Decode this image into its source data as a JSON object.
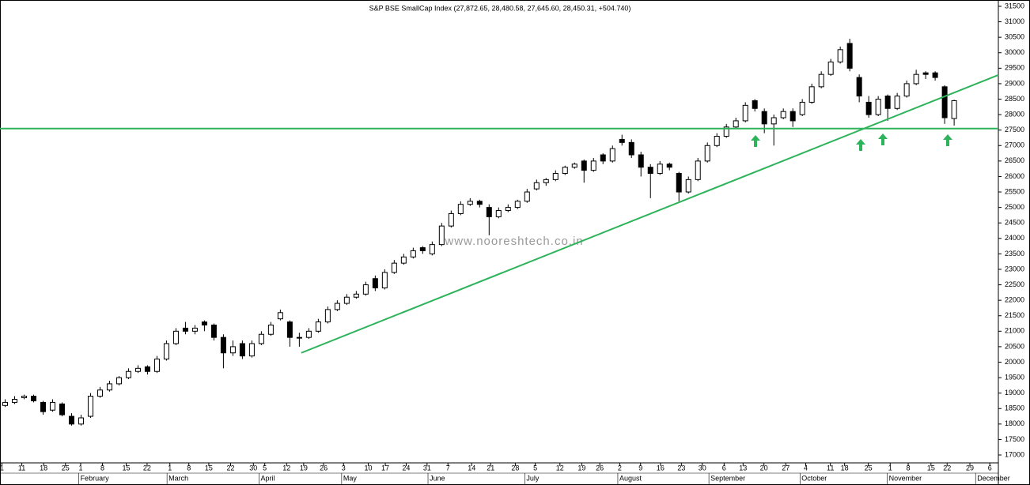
{
  "chart_data": {
    "type": "candlestick",
    "title": "S&P BSE SmallCap Index (27,872.65, 28,480.58, 27,645.60, 28,450.31, +504.740)",
    "watermark": "www.nooreshtech.co.in",
    "ohlc": [
      [
        18600,
        18800,
        18550,
        18700
      ],
      [
        18700,
        18900,
        18650,
        18800
      ],
      [
        18850,
        18950,
        18800,
        18900
      ],
      [
        18900,
        18950,
        18700,
        18750
      ],
      [
        18700,
        18750,
        18300,
        18400
      ],
      [
        18450,
        18800,
        18400,
        18700
      ],
      [
        18650,
        18700,
        18250,
        18300
      ],
      [
        18250,
        18350,
        17950,
        18000
      ],
      [
        18000,
        18300,
        17950,
        18200
      ],
      [
        18250,
        19000,
        18200,
        18900
      ],
      [
        18900,
        19200,
        18850,
        19100
      ],
      [
        19100,
        19400,
        19050,
        19300
      ],
      [
        19300,
        19550,
        19250,
        19500
      ],
      [
        19500,
        19800,
        19450,
        19700
      ],
      [
        19700,
        19900,
        19650,
        19800
      ],
      [
        19850,
        19900,
        19600,
        19700
      ],
      [
        19700,
        20200,
        19650,
        20100
      ],
      [
        20100,
        20700,
        20050,
        20600
      ],
      [
        20600,
        21100,
        20550,
        21000
      ],
      [
        21100,
        21300,
        20900,
        21000
      ],
      [
        21000,
        21200,
        20900,
        21100
      ],
      [
        21300,
        21350,
        21000,
        21200
      ],
      [
        21200,
        21250,
        20700,
        20800
      ],
      [
        20800,
        20900,
        19800,
        20300
      ],
      [
        20300,
        20700,
        20200,
        20500
      ],
      [
        20600,
        20700,
        20100,
        20200
      ],
      [
        20200,
        20700,
        20150,
        20600
      ],
      [
        20600,
        21000,
        20550,
        20900
      ],
      [
        20900,
        21300,
        20850,
        21200
      ],
      [
        21400,
        21700,
        21350,
        21600
      ],
      [
        21300,
        21350,
        20500,
        20800
      ],
      [
        20800,
        20950,
        20500,
        20800
      ],
      [
        20800,
        21100,
        20750,
        21000
      ],
      [
        21000,
        21400,
        20950,
        21300
      ],
      [
        21300,
        21800,
        21250,
        21700
      ],
      [
        21700,
        22000,
        21650,
        21900
      ],
      [
        21900,
        22200,
        21850,
        22100
      ],
      [
        22100,
        22300,
        22050,
        22200
      ],
      [
        22200,
        22600,
        22150,
        22500
      ],
      [
        22700,
        22800,
        22300,
        22400
      ],
      [
        22400,
        23000,
        22350,
        22900
      ],
      [
        22900,
        23300,
        22850,
        23200
      ],
      [
        23200,
        23500,
        23150,
        23400
      ],
      [
        23400,
        23700,
        23350,
        23600
      ],
      [
        23700,
        23750,
        23500,
        23600
      ],
      [
        23500,
        23900,
        23450,
        23800
      ],
      [
        23800,
        24500,
        23750,
        24400
      ],
      [
        24400,
        24900,
        24350,
        24800
      ],
      [
        24800,
        25200,
        24750,
        25100
      ],
      [
        25100,
        25300,
        25050,
        25200
      ],
      [
        25200,
        25250,
        25000,
        25100
      ],
      [
        25000,
        25100,
        24100,
        24700
      ],
      [
        24700,
        25000,
        24650,
        24900
      ],
      [
        24900,
        25100,
        24850,
        25000
      ],
      [
        25000,
        25250,
        24950,
        25200
      ],
      [
        25200,
        25600,
        25150,
        25500
      ],
      [
        25600,
        25900,
        25550,
        25800
      ],
      [
        25800,
        25950,
        25700,
        25900
      ],
      [
        25900,
        26200,
        25850,
        26100
      ],
      [
        26100,
        26350,
        26050,
        26300
      ],
      [
        26300,
        26450,
        26250,
        26400
      ],
      [
        26500,
        26550,
        25800,
        26200
      ],
      [
        26200,
        26600,
        26150,
        26500
      ],
      [
        26700,
        26750,
        26400,
        26500
      ],
      [
        26500,
        27000,
        26450,
        26900
      ],
      [
        27200,
        27350,
        27000,
        27100
      ],
      [
        27100,
        27200,
        26600,
        26700
      ],
      [
        26700,
        26800,
        26000,
        26300
      ],
      [
        26300,
        26400,
        25300,
        26100
      ],
      [
        26100,
        26500,
        26050,
        26400
      ],
      [
        26400,
        26450,
        26200,
        26300
      ],
      [
        26100,
        26150,
        25200,
        25500
      ],
      [
        25500,
        26000,
        25450,
        25900
      ],
      [
        25900,
        26600,
        25850,
        26500
      ],
      [
        26500,
        27100,
        26450,
        27000
      ],
      [
        27000,
        27400,
        26950,
        27300
      ],
      [
        27300,
        27700,
        27250,
        27600
      ],
      [
        27600,
        27900,
        27550,
        27800
      ],
      [
        27800,
        28400,
        27750,
        28300
      ],
      [
        28450,
        28500,
        28100,
        28200
      ],
      [
        28100,
        28200,
        27400,
        27700
      ],
      [
        27700,
        28000,
        27000,
        27900
      ],
      [
        27900,
        28200,
        27850,
        28100
      ],
      [
        28100,
        28200,
        27600,
        27800
      ],
      [
        28000,
        28500,
        27950,
        28400
      ],
      [
        28400,
        29000,
        28350,
        28900
      ],
      [
        28900,
        29400,
        28850,
        29300
      ],
      [
        29300,
        29800,
        29250,
        29700
      ],
      [
        29700,
        30200,
        29650,
        30100
      ],
      [
        30300,
        30450,
        29400,
        29500
      ],
      [
        29200,
        29300,
        28400,
        28600
      ],
      [
        28400,
        28600,
        27900,
        28000
      ],
      [
        28000,
        28600,
        27950,
        28500
      ],
      [
        28600,
        28650,
        27800,
        28200
      ],
      [
        28200,
        28700,
        28150,
        28600
      ],
      [
        28600,
        29100,
        28550,
        29000
      ],
      [
        29000,
        29450,
        28950,
        29300
      ],
      [
        29350,
        29400,
        29150,
        29300
      ],
      [
        29350,
        29400,
        29100,
        29200
      ],
      [
        28900,
        28950,
        27700,
        27900
      ],
      [
        27872.65,
        28480.58,
        27645.6,
        28450.31
      ]
    ],
    "xlim": [
      -0.5,
      104.7
    ],
    "xticks": [
      {
        "value": -0.3,
        "label": "1"
      },
      {
        "value": 1.8,
        "label": "11"
      },
      {
        "value": 4.1,
        "label": "18"
      },
      {
        "value": 6.4,
        "label": "25"
      },
      {
        "value": 8.0,
        "label": "1"
      },
      {
        "value": 10.3,
        "label": "8"
      },
      {
        "value": 12.8,
        "label": "15"
      },
      {
        "value": 15.0,
        "label": "22"
      },
      {
        "value": 17.4,
        "label": "1"
      },
      {
        "value": 19.4,
        "label": "8"
      },
      {
        "value": 21.5,
        "label": "15"
      },
      {
        "value": 23.8,
        "label": "22"
      },
      {
        "value": 26.2,
        "label": "30"
      },
      {
        "value": 27.4,
        "label": "5"
      },
      {
        "value": 29.7,
        "label": "12"
      },
      {
        "value": 31.5,
        "label": "19"
      },
      {
        "value": 33.6,
        "label": "26"
      },
      {
        "value": 35.7,
        "label": "3"
      },
      {
        "value": 38.3,
        "label": "10"
      },
      {
        "value": 40.1,
        "label": "17"
      },
      {
        "value": 42.3,
        "label": "24"
      },
      {
        "value": 44.5,
        "label": "31"
      },
      {
        "value": 46.7,
        "label": "7"
      },
      {
        "value": 49.2,
        "label": "14"
      },
      {
        "value": 51.2,
        "label": "21"
      },
      {
        "value": 53.8,
        "label": "28"
      },
      {
        "value": 55.9,
        "label": "5"
      },
      {
        "value": 58.5,
        "label": "12"
      },
      {
        "value": 60.8,
        "label": "19"
      },
      {
        "value": 62.7,
        "label": "26"
      },
      {
        "value": 64.8,
        "label": "2"
      },
      {
        "value": 67.0,
        "label": "9"
      },
      {
        "value": 69.1,
        "label": "16"
      },
      {
        "value": 71.3,
        "label": "23"
      },
      {
        "value": 73.5,
        "label": "30"
      },
      {
        "value": 75.8,
        "label": "6"
      },
      {
        "value": 77.8,
        "label": "13"
      },
      {
        "value": 80.0,
        "label": "20"
      },
      {
        "value": 82.3,
        "label": "27"
      },
      {
        "value": 84.4,
        "label": "4"
      },
      {
        "value": 87.0,
        "label": "11"
      },
      {
        "value": 88.5,
        "label": "18"
      },
      {
        "value": 91.0,
        "label": "25"
      },
      {
        "value": 93.3,
        "label": "1"
      },
      {
        "value": 95.2,
        "label": "8"
      },
      {
        "value": 97.6,
        "label": "15"
      },
      {
        "value": 99.3,
        "label": "22"
      },
      {
        "value": 101.7,
        "label": "29"
      },
      {
        "value": 103.8,
        "label": "6"
      }
    ],
    "month_ticks": [
      {
        "value": 7.8,
        "label": "February"
      },
      {
        "value": 17.1,
        "label": "March"
      },
      {
        "value": 26.8,
        "label": "April"
      },
      {
        "value": 35.5,
        "label": "May"
      },
      {
        "value": 44.6,
        "label": "June"
      },
      {
        "value": 54.8,
        "label": "July"
      },
      {
        "value": 64.6,
        "label": "August"
      },
      {
        "value": 74.2,
        "label": "September"
      },
      {
        "value": 83.8,
        "label": "October"
      },
      {
        "value": 93.0,
        "label": "November"
      },
      {
        "value": 102.3,
        "label": "December"
      }
    ],
    "ylim": [
      16745,
      31653
    ],
    "yticks": [
      17000,
      17500,
      18000,
      18500,
      19000,
      19500,
      20000,
      20500,
      21000,
      21500,
      22000,
      22500,
      23000,
      23500,
      24000,
      24500,
      25000,
      25500,
      26000,
      26500,
      27000,
      27500,
      28000,
      28500,
      29000,
      29500,
      30000,
      30500,
      31000,
      31500
    ],
    "support_line": 27550,
    "trend_line": {
      "x": [
        31.25,
        104.7
      ],
      "y": [
        20300,
        29280
      ]
    },
    "line_color": "#2db35a",
    "up_color": "#ffffff",
    "down_color": "#000000"
  }
}
